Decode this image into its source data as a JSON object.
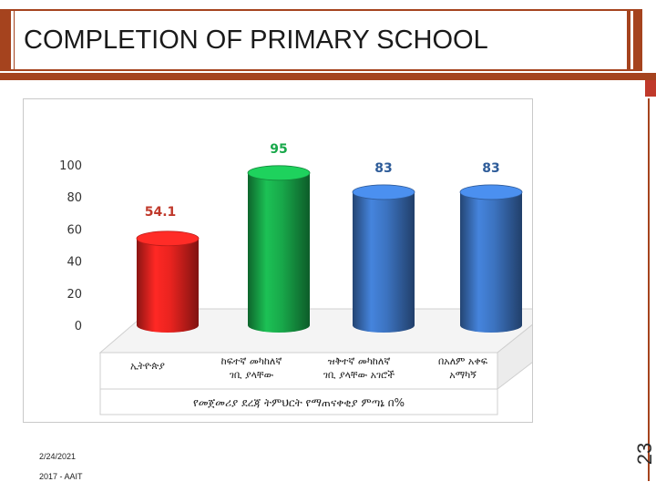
{
  "slide": {
    "title": "COMPLETION OF PRIMARY SCHOOL",
    "number": "23",
    "footer_date": "2/24/2021",
    "footer_org": "2017 - AAIT"
  },
  "colors": {
    "title_band": "#A5431E",
    "accent": "#C0392B"
  },
  "chart_data": {
    "type": "bar",
    "style": "3d-cylinder",
    "categories": [
      "ኢትዮጵያ",
      "ከፍተኛ መካከለኛ ገቢ ያላቸው",
      "ዝቅተኛ መካከለኛ ገቢ ያላቸው አገሮች",
      "በአለም አቀፍ አማካኝ"
    ],
    "values": [
      54.1,
      95,
      83,
      83
    ],
    "value_labels": [
      "54.1",
      "95",
      "83",
      "83"
    ],
    "bar_colors": [
      "#E8231F",
      "#18A84A",
      "#3C73C0",
      "#3C73C0"
    ],
    "label_colors": [
      "#C0392B",
      "#18A84A",
      "#2E5C99",
      "#2E5C99"
    ],
    "xlabel": "የመጀመሪያ ደረጃ ትምህርት የማጠናቀቂያ ምጣኔ በ%",
    "ylabel": "",
    "ylim": [
      0,
      100
    ],
    "yticks": [
      0,
      20,
      40,
      60,
      80,
      100
    ],
    "grid": false,
    "legend": "none"
  }
}
